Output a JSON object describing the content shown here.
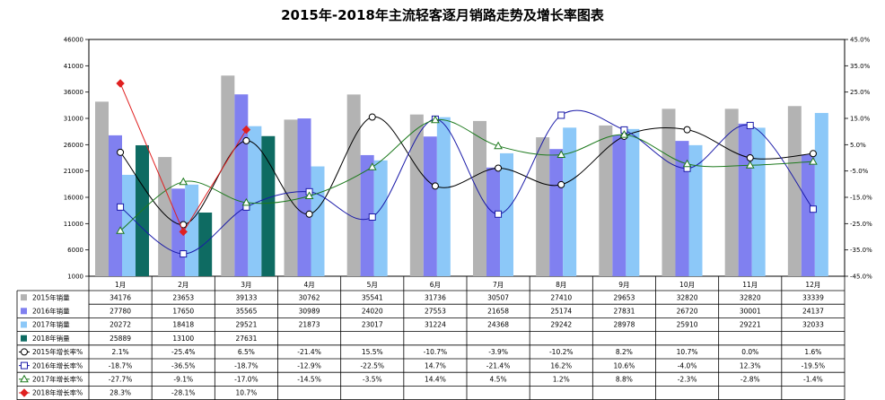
{
  "chart_data": {
    "type": "bar",
    "title": "2015年-2018年主流轻客逐月销路走势及增长率图表",
    "categories": [
      "1月",
      "2月",
      "3月",
      "4月",
      "5月",
      "6月",
      "7月",
      "8月",
      "9月",
      "10月",
      "11月",
      "12月"
    ],
    "left_axis": {
      "ylim": [
        1000,
        46000
      ],
      "ticks": [
        "46000",
        "41000",
        "36000",
        "31000",
        "26000",
        "21000",
        "16000",
        "11000",
        "6000",
        "1000"
      ]
    },
    "right_axis": {
      "ylim": [
        -45.0,
        45.0
      ],
      "ticks": [
        "45.0%",
        "35.0%",
        "25.0%",
        "15.0%",
        "5.0%",
        "-5.0%",
        "-15.0%",
        "-25.0%",
        "-35.0%",
        "-45.0%"
      ]
    },
    "series": [
      {
        "name": "2015年销量",
        "kind": "bar",
        "color": "#b3b3b3",
        "values": [
          34176,
          23653,
          39133,
          30762,
          35541,
          31736,
          30507,
          27410,
          29653,
          32820,
          32820,
          33339
        ],
        "labels": [
          "34176",
          "23653",
          "39133",
          "30762",
          "35541",
          "31736",
          "30507",
          "27410",
          "29653",
          "32820",
          "32820",
          "33339"
        ]
      },
      {
        "name": "2016年销量",
        "kind": "bar",
        "color": "#8080f0",
        "values": [
          27780,
          17650,
          35565,
          30989,
          24020,
          27553,
          21658,
          25174,
          27831,
          26720,
          30001,
          24137
        ],
        "labels": [
          "27780",
          "17650",
          "35565",
          "30989",
          "24020",
          "27553",
          "21658",
          "25174",
          "27831",
          "26720",
          "30001",
          "24137"
        ]
      },
      {
        "name": "2017年销量",
        "kind": "bar",
        "color": "#8cc8f8",
        "values": [
          20272,
          18418,
          29521,
          21873,
          23017,
          31224,
          24368,
          29242,
          28978,
          25910,
          29221,
          32033
        ],
        "labels": [
          "20272",
          "18418",
          "29521",
          "21873",
          "23017",
          "31224",
          "24368",
          "29242",
          "28978",
          "25910",
          "29221",
          "32033"
        ]
      },
      {
        "name": "2018年销量",
        "kind": "bar",
        "color": "#0e6b62",
        "values": [
          25889,
          13100,
          27631,
          null,
          null,
          null,
          null,
          null,
          null,
          null,
          null,
          null
        ],
        "labels": [
          "25889",
          "13100",
          "27631",
          "",
          "",
          "",
          "",
          "",
          "",
          "",
          "",
          ""
        ]
      },
      {
        "name": "2015年增长率%",
        "kind": "line",
        "color": "#000000",
        "marker": "circle",
        "values": [
          2.1,
          -25.4,
          6.5,
          -21.4,
          15.5,
          -10.7,
          -3.9,
          -10.2,
          8.2,
          10.7,
          0.0,
          1.6
        ],
        "labels": [
          "2.1%",
          "-25.4%",
          "6.5%",
          "-21.4%",
          "15.5%",
          "-10.7%",
          "-3.9%",
          "-10.2%",
          "8.2%",
          "10.7%",
          "0.0%",
          "1.6%"
        ]
      },
      {
        "name": "2016年增长率%",
        "kind": "line",
        "color": "#1a1aa8",
        "marker": "square",
        "values": [
          -18.7,
          -36.5,
          -18.7,
          -12.9,
          -22.5,
          14.7,
          -21.4,
          16.2,
          10.6,
          -4.0,
          12.3,
          -19.5
        ],
        "labels": [
          "-18.7%",
          "-36.5%",
          "-18.7%",
          "-12.9%",
          "-22.5%",
          "14.7%",
          "-21.4%",
          "16.2%",
          "10.6%",
          "-4.0%",
          "12.3%",
          "-19.5%"
        ]
      },
      {
        "name": "2017年增长率%",
        "kind": "line",
        "color": "#1e7a1e",
        "marker": "triangle",
        "values": [
          -27.7,
          -9.1,
          -17.0,
          -14.5,
          -3.5,
          14.4,
          4.5,
          1.2,
          8.8,
          -2.3,
          -2.8,
          -1.4
        ],
        "labels": [
          "-27.7%",
          "-9.1%",
          "-17.0%",
          "-14.5%",
          "-3.5%",
          "14.4%",
          "4.5%",
          "1.2%",
          "8.8%",
          "-2.3%",
          "-2.8%",
          "-1.4%"
        ]
      },
      {
        "name": "2018年增长率%",
        "kind": "line",
        "color": "#e02020",
        "marker": "diamond",
        "values": [
          28.3,
          -28.1,
          10.7,
          null,
          null,
          null,
          null,
          null,
          null,
          null,
          null,
          null
        ],
        "labels": [
          "28.3%",
          "-28.1%",
          "10.7%",
          "",
          "",
          "",
          "",
          "",
          "",
          "",
          "",
          ""
        ]
      }
    ],
    "grid": false,
    "legend": "table-below"
  }
}
